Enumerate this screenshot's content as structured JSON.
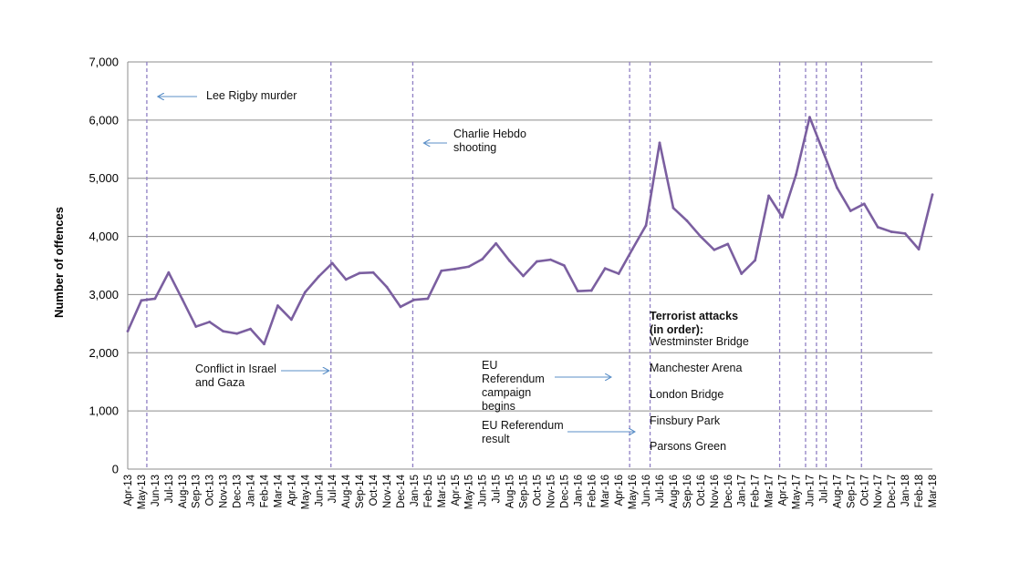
{
  "chart_data": {
    "type": "line",
    "ylabel": "Number of offences",
    "xlabel": "",
    "title": "",
    "ylim": [
      0,
      7000
    ],
    "yticks": [
      0,
      1000,
      2000,
      3000,
      4000,
      5000,
      6000,
      7000
    ],
    "ytick_labels": [
      "0",
      "1,000",
      "2,000",
      "3,000",
      "4,000",
      "5,000",
      "6,000",
      "7,000"
    ],
    "grid": true,
    "line_color": "#7b5fa0",
    "event_line_color": "#8f7fc4",
    "arrow_color": "#5b8fc7",
    "categories": [
      "Apr-13",
      "May-13",
      "Jun-13",
      "Jul-13",
      "Aug-13",
      "Sep-13",
      "Oct-13",
      "Nov-13",
      "Dec-13",
      "Jan-14",
      "Feb-14",
      "Mar-14",
      "Apr-14",
      "May-14",
      "Jun-14",
      "Jul-14",
      "Aug-14",
      "Sep-14",
      "Oct-14",
      "Nov-14",
      "Dec-14",
      "Jan-15",
      "Feb-15",
      "Mar-15",
      "Apr-15",
      "May-15",
      "Jun-15",
      "Jul-15",
      "Aug-15",
      "Sep-15",
      "Oct-15",
      "Nov-15",
      "Dec-15",
      "Jan-16",
      "Feb-16",
      "Mar-16",
      "Apr-16",
      "May-16",
      "Jun-16",
      "Jul-16",
      "Aug-16",
      "Sep-16",
      "Oct-16",
      "Nov-16",
      "Dec-16",
      "Jan-17",
      "Feb-17",
      "Mar-17",
      "Apr-17",
      "May-17",
      "Jun-17",
      "Jul-17",
      "Aug-17",
      "Sep-17",
      "Oct-17",
      "Nov-17",
      "Dec-17",
      "Jan-18",
      "Feb-18",
      "Mar-18"
    ],
    "series": [
      {
        "values": [
          2370,
          2900,
          2930,
          3380,
          2920,
          2450,
          2530,
          2370,
          2330,
          2410,
          2150,
          2810,
          2570,
          3040,
          3310,
          3540,
          3260,
          3370,
          3380,
          3130,
          2790,
          2910,
          2930,
          3410,
          3440,
          3480,
          3610,
          3880,
          3580,
          3320,
          3570,
          3600,
          3500,
          3060,
          3070,
          3450,
          3360,
          3780,
          4190,
          5610,
          4490,
          4270,
          4000,
          3770,
          3870,
          3360,
          3590,
          4700,
          4330,
          5060,
          6050,
          5450,
          4840,
          4440,
          4560,
          4160,
          4080,
          4050,
          3780,
          4720
        ]
      }
    ],
    "event_lines": [
      {
        "label": "Lee Rigby murder",
        "x": 1.4
      },
      {
        "label": "Conflict in Israel and Gaza",
        "x": 14.9
      },
      {
        "label": "Charlie Hebdo shooting",
        "x": 20.9
      },
      {
        "label": "EU Referendum campaign begins",
        "x": 36.8
      },
      {
        "label": "EU Referendum result",
        "x": 38.3
      },
      {
        "label": "Westminster Bridge",
        "x": 47.8
      },
      {
        "label": "Manchester Arena",
        "x": 49.7
      },
      {
        "label": "London Bridge",
        "x": 50.5
      },
      {
        "label": "Finsbury Park",
        "x": 51.2
      },
      {
        "label": "Parsons Green",
        "x": 53.8
      }
    ],
    "annotations": {
      "lee_rigby": "Lee Rigby murder",
      "charlie_hebdo_1": "Charlie Hebdo",
      "charlie_hebdo_2": "shooting",
      "israel_gaza_1": "Conflict in Israel",
      "israel_gaza_2": "and Gaza",
      "eu_campaign_1": "EU",
      "eu_campaign_2": "Referendum",
      "eu_campaign_3": "campaign",
      "eu_campaign_4": "begins",
      "eu_result_1": "EU Referendum",
      "eu_result_2": "result",
      "terror_heading_1": "Terrorist attacks",
      "terror_heading_2": "(in order):",
      "terror_1": "Westminster Bridge",
      "terror_2": "Manchester Arena",
      "terror_3": "London Bridge",
      "terror_4": "Finsbury Park",
      "terror_5": "Parsons Green"
    }
  }
}
